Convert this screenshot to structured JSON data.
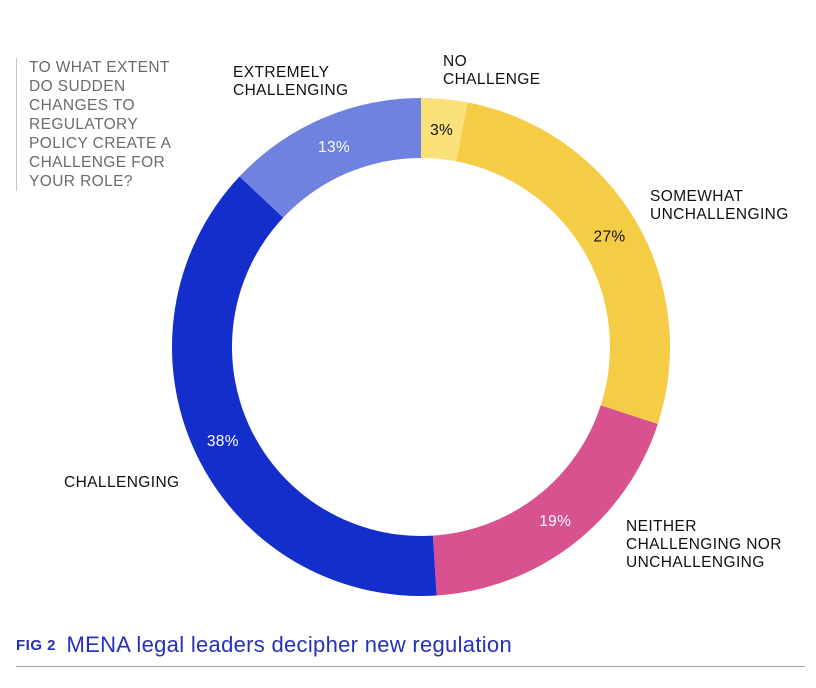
{
  "question": "TO WHAT EXTENT DO SUDDEN CHANGES TO REGULATORY POLICY CREATE A CHALLENGE FOR YOUR ROLE?",
  "caption": {
    "fig": "FIG 2",
    "title": "MENA legal leaders decipher new regulation"
  },
  "chart_data": {
    "type": "pie",
    "style": "donut",
    "start": "top",
    "direction": "clockwise",
    "title": "",
    "legend": "none",
    "slices": [
      {
        "label": "NO CHALLENGE",
        "label_lines": [
          "NO",
          "CHALLENGE"
        ],
        "value": 3,
        "pct_text": "3%",
        "color": "#fae17a",
        "pct_color": "#111111"
      },
      {
        "label": "SOMEWHAT UNCHALLENGING",
        "label_lines": [
          "SOMEWHAT",
          "UNCHALLENGING"
        ],
        "value": 27,
        "pct_text": "27%",
        "color": "#f5cc45",
        "pct_color": "#111111"
      },
      {
        "label": "NEITHER CHALLENGING NOR UNCHALLENGING",
        "label_lines": [
          "NEITHER",
          "CHALLENGING NOR",
          "UNCHALLENGING"
        ],
        "value": 19,
        "pct_text": "19%",
        "color": "#d85290",
        "pct_color": "#ffffff"
      },
      {
        "label": "CHALLENGING",
        "label_lines": [
          "CHALLENGING"
        ],
        "value": 38,
        "pct_text": "38%",
        "color": "#142ecb",
        "pct_color": "#ffffff"
      },
      {
        "label": "EXTREMELY CHALLENGING",
        "label_lines": [
          "EXTREMELY",
          "CHALLENGING"
        ],
        "value": 13,
        "pct_text": "13%",
        "color": "#6f82df",
        "pct_color": "#ffffff"
      }
    ]
  }
}
